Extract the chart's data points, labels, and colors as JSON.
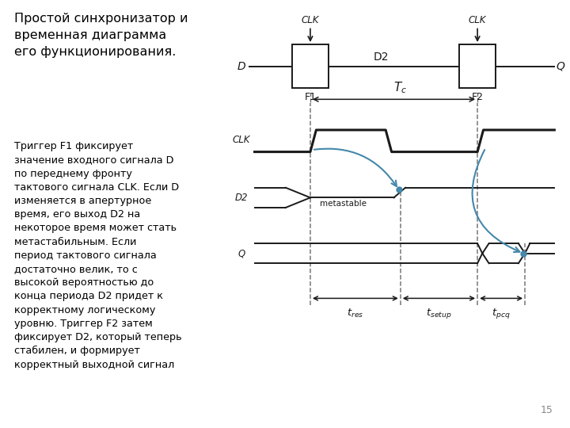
{
  "title_text": "Простой синхронизатор и\nвременная диаграмма\nего функционирования.",
  "body_text": "Триггер F1 фиксирует\nзначение входного сигнала D\nпо переднему фронту\nтактового сигнала CLK. Если D\nизменяется в апертурное\nвремя, его выход D2 на\nнекоторое время может стать\nметастабильным. Если\nпериод тактового сигнала\nдостаточно велик, то с\nвысокой вероятностью до\nконца периода D2 придет к\nкорректному логическому\nуровню. Триггер F2 затем\nфиксирует D2, который теперь\nстабилен, и формирует\nкорректный выходной сигнал",
  "page_num": "15",
  "bg_color": "#ffffff",
  "line_color": "#1a1a1a",
  "blue_color": "#4488aa",
  "dashed_color": "#777777"
}
